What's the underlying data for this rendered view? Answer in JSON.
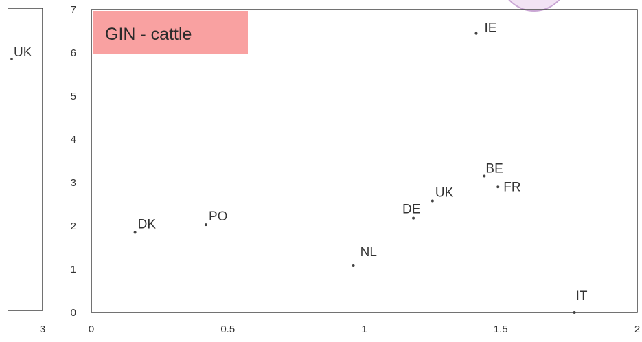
{
  "chart_data": {
    "type": "scatter",
    "title": "GIN - cattle",
    "xlim": [
      0,
      2
    ],
    "ylim": [
      0,
      7
    ],
    "x_ticks": [
      "0",
      "0.5",
      "1",
      "1.5",
      "2"
    ],
    "y_ticks": [
      "0",
      "1",
      "2",
      "3",
      "4",
      "5",
      "6",
      "7"
    ],
    "grid": false,
    "legend": "none",
    "points": [
      {
        "label": "DK",
        "x": 0.16,
        "y": 1.85
      },
      {
        "label": "PO",
        "x": 0.42,
        "y": 2.03
      },
      {
        "label": "NL",
        "x": 0.96,
        "y": 1.08
      },
      {
        "label": "DE",
        "x": 1.18,
        "y": 2.18
      },
      {
        "label": "UK",
        "x": 1.25,
        "y": 2.58
      },
      {
        "label": "BE",
        "x": 1.44,
        "y": 3.15
      },
      {
        "label": "FR",
        "x": 1.49,
        "y": 2.9
      },
      {
        "label": "IE",
        "x": 1.41,
        "y": 6.45
      },
      {
        "label": "IT",
        "x": 1.77,
        "y": 0.0
      }
    ],
    "colors": {
      "title_box": "#f9a1a1",
      "point": "#444444",
      "axis": "#444444"
    }
  },
  "left_fragment": {
    "point_label": "UK",
    "tick_label": "3"
  }
}
